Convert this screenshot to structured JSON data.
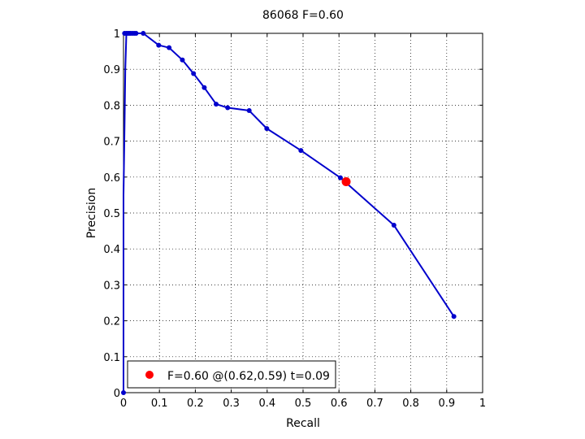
{
  "chart_data": {
    "type": "line",
    "title": "86068 F=0.60",
    "xlabel": "Recall",
    "ylabel": "Precision",
    "xlim": [
      0,
      1
    ],
    "ylim": [
      0,
      1
    ],
    "grid": true,
    "x_ticks": [
      "0",
      "0.1",
      "0.2",
      "0.3",
      "0.4",
      "0.5",
      "0.6",
      "0.7",
      "0.8",
      "0.9",
      "1"
    ],
    "y_ticks": [
      "0",
      "0.1",
      "0.2",
      "0.3",
      "0.4",
      "0.5",
      "0.6",
      "0.7",
      "0.8",
      "0.9",
      "1"
    ],
    "series": [
      {
        "color": "#0000cc",
        "x": [
          0,
          0,
          0.003,
          0.005,
          0.008,
          0.01,
          0.015,
          0.02,
          0.025,
          0.03,
          0.035,
          0.055,
          0.098,
          0.127,
          0.164,
          0.195,
          0.225,
          0.258,
          0.29,
          0.35,
          0.399,
          0.494,
          0.604,
          0.753,
          0.92
        ],
        "y": [
          0,
          0.55,
          0.75,
          0.9,
          1,
          1,
          1,
          1,
          1,
          1,
          1,
          1,
          0.967,
          0.96,
          0.926,
          0.888,
          0.849,
          0.803,
          0.793,
          0.785,
          0.735,
          0.674,
          0.598,
          0.466,
          0.212
        ],
        "markers": [
          [
            0,
            0
          ],
          [
            0.003,
            1
          ],
          [
            0.008,
            1
          ],
          [
            0.012,
            1
          ],
          [
            0.016,
            1
          ],
          [
            0.02,
            1
          ],
          [
            0.025,
            1
          ],
          [
            0.03,
            1
          ],
          [
            0.035,
            1
          ],
          [
            0.055,
            1
          ],
          [
            0.098,
            0.967
          ],
          [
            0.127,
            0.96
          ],
          [
            0.164,
            0.926
          ],
          [
            0.195,
            0.888
          ],
          [
            0.225,
            0.849
          ],
          [
            0.258,
            0.803
          ],
          [
            0.29,
            0.793
          ],
          [
            0.35,
            0.785
          ],
          [
            0.399,
            0.735
          ],
          [
            0.494,
            0.674
          ],
          [
            0.604,
            0.598
          ],
          [
            0.753,
            0.466
          ],
          [
            0.92,
            0.212
          ]
        ]
      }
    ],
    "best_point": {
      "x": 0.62,
      "y": 0.587,
      "color": "#ff0000"
    },
    "legend": {
      "text": "F=0.60 @(0.62,0.59) t=0.09",
      "position": "bottom-left"
    }
  }
}
